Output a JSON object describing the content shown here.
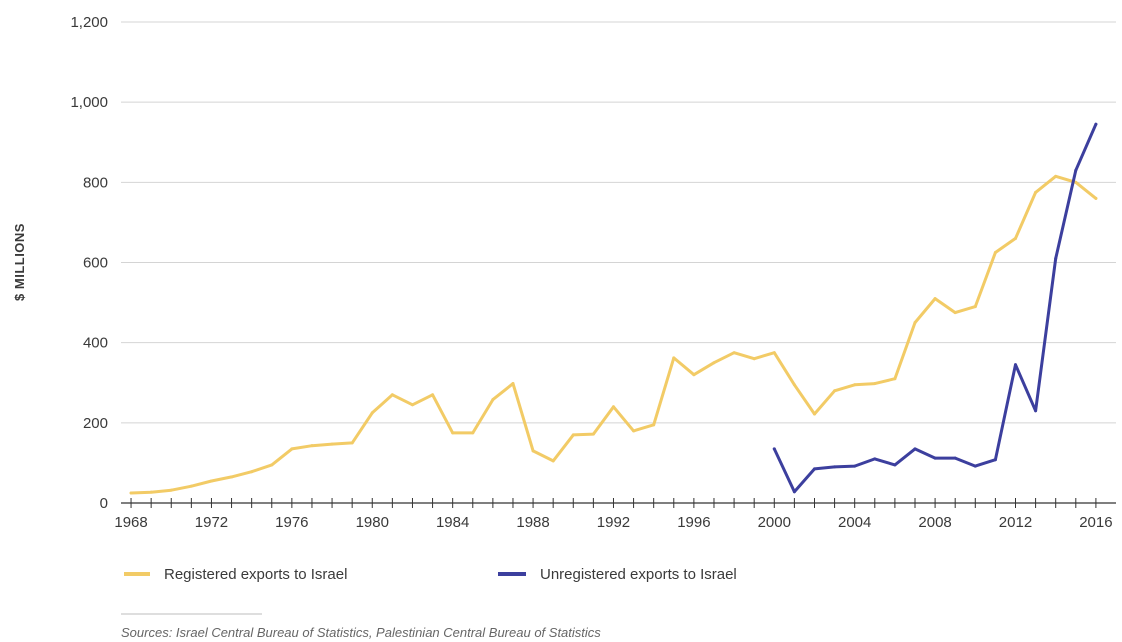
{
  "chart_data": {
    "type": "line",
    "ylabel": "$ MILLIONS",
    "xlabel": "",
    "ylim": [
      0,
      1200
    ],
    "xlim": [
      1967.5,
      2017
    ],
    "yticks": [
      0,
      200,
      400,
      600,
      800,
      1000,
      1200
    ],
    "ytick_labels": [
      "0",
      "200",
      "400",
      "600",
      "800",
      "1,000",
      "1,200"
    ],
    "xtick_labels": [
      "1968",
      "1972",
      "1976",
      "1980",
      "1984",
      "1988",
      "1992",
      "1996",
      "2000",
      "2004",
      "2008",
      "2012",
      "2016"
    ],
    "grid": "horizontal",
    "legend_position": "bottom",
    "series": [
      {
        "name": "Registered exports to Israel",
        "color": "#f2cb66",
        "x": [
          1968,
          1969,
          1970,
          1971,
          1972,
          1973,
          1974,
          1975,
          1976,
          1977,
          1978,
          1979,
          1980,
          1981,
          1982,
          1983,
          1984,
          1985,
          1986,
          1987,
          1988,
          1989,
          1990,
          1991,
          1992,
          1993,
          1994,
          1995,
          1996,
          1997,
          1998,
          1999,
          2000,
          2001,
          2002,
          2003,
          2004,
          2005,
          2006,
          2007,
          2008,
          2009,
          2010,
          2011,
          2012,
          2013,
          2014,
          2015,
          2016
        ],
        "values": [
          25,
          27,
          32,
          42,
          55,
          65,
          78,
          95,
          135,
          143,
          147,
          150,
          225,
          270,
          245,
          270,
          175,
          175,
          258,
          298,
          130,
          105,
          170,
          172,
          240,
          180,
          195,
          362,
          320,
          350,
          375,
          360,
          375,
          295,
          222,
          280,
          295,
          298,
          310,
          450,
          510,
          475,
          490,
          625,
          660,
          775,
          815,
          800,
          760
        ]
      },
      {
        "name": "Unregistered exports to Israel",
        "color": "#3c3f9e",
        "x": [
          2000,
          2001,
          2002,
          2003,
          2004,
          2005,
          2006,
          2007,
          2008,
          2009,
          2010,
          2011,
          2012,
          2013,
          2014,
          2015,
          2016
        ],
        "values": [
          135,
          28,
          85,
          90,
          92,
          110,
          95,
          135,
          112,
          112,
          92,
          108,
          345,
          230,
          610,
          830,
          945
        ]
      }
    ]
  },
  "source_text": "Sources: Israel Central Bureau of Statistics, Palestinian Central Bureau of Statistics"
}
